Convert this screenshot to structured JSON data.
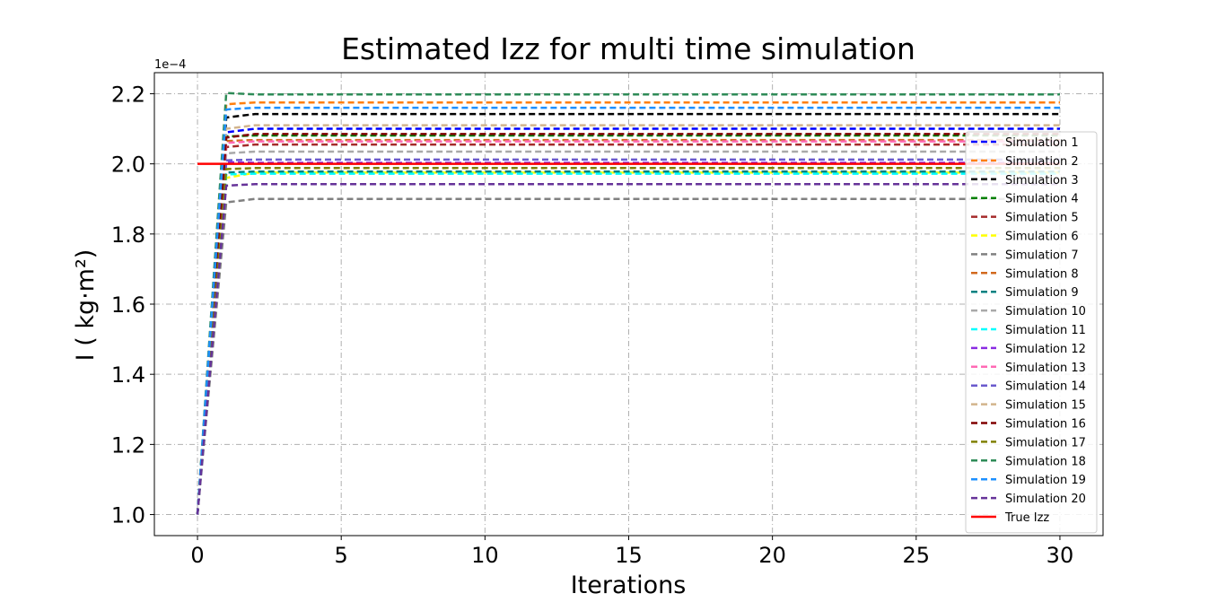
{
  "chart_data": {
    "type": "line",
    "title": "Estimated Izz for multi time simulation",
    "xlabel": "Iterations",
    "ylabel": "I ( kg·m²)",
    "y_offset_label": "1e−4",
    "xlim": [
      -1.5,
      31.5
    ],
    "ylim": [
      0.94,
      2.26
    ],
    "x_ticks": [
      0,
      5,
      10,
      15,
      20,
      25,
      30
    ],
    "x_tick_labels": [
      "0",
      "5",
      "10",
      "15",
      "20",
      "25",
      "30"
    ],
    "y_ticks": [
      1.0,
      1.2,
      1.4,
      1.6,
      1.8,
      2.0,
      2.2
    ],
    "y_tick_labels": [
      "1.0",
      "1.2",
      "1.4",
      "1.6",
      "1.8",
      "2.0",
      "2.2"
    ],
    "grid": true,
    "legend_position": "right",
    "x_range": [
      0,
      30
    ],
    "start_value": 1.0,
    "series": [
      {
        "name": "Simulation 1",
        "color": "#0000ff",
        "style": "dashed",
        "peak": 2.09,
        "final": 2.1
      },
      {
        "name": "Simulation 2",
        "color": "#ff7f0e",
        "style": "dashed",
        "peak": 2.17,
        "final": 2.175
      },
      {
        "name": "Simulation 3",
        "color": "#000000",
        "style": "dashed",
        "peak": 2.132,
        "final": 2.142
      },
      {
        "name": "Simulation 4",
        "color": "#008000",
        "style": "dashed",
        "peak": 2.078,
        "final": 2.081
      },
      {
        "name": "Simulation 5",
        "color": "#a52a2a",
        "style": "dashed",
        "peak": 2.048,
        "final": 2.055
      },
      {
        "name": "Simulation 6",
        "color": "#ffff00",
        "style": "dashed",
        "peak": 1.96,
        "final": 1.975
      },
      {
        "name": "Simulation 7",
        "color": "#808080",
        "style": "dashed",
        "peak": 1.89,
        "final": 1.9
      },
      {
        "name": "Simulation 8",
        "color": "#d2691e",
        "style": "dashed",
        "peak": 2.065,
        "final": 2.068
      },
      {
        "name": "Simulation 9",
        "color": "#008080",
        "style": "dashed",
        "peak": 1.975,
        "final": 1.978
      },
      {
        "name": "Simulation 10",
        "color": "#a9a9a9",
        "style": "dashed",
        "peak": 2.03,
        "final": 2.035
      },
      {
        "name": "Simulation 11",
        "color": "#00ffff",
        "style": "dashed",
        "peak": 1.97,
        "final": 1.972
      },
      {
        "name": "Simulation 12",
        "color": "#8a2be2",
        "style": "dashed",
        "peak": 2.005,
        "final": 2.003
      },
      {
        "name": "Simulation 13",
        "color": "#ff69b4",
        "style": "dashed",
        "peak": 2.06,
        "final": 2.064
      },
      {
        "name": "Simulation 14",
        "color": "#6a5acd",
        "style": "dashed",
        "peak": 2.01,
        "final": 2.012
      },
      {
        "name": "Simulation 15",
        "color": "#d2b48c",
        "style": "dashed",
        "peak": 2.1,
        "final": 2.11
      },
      {
        "name": "Simulation 16",
        "color": "#800000",
        "style": "dashed",
        "peak": 2.075,
        "final": 2.085
      },
      {
        "name": "Simulation 17",
        "color": "#808000",
        "style": "dashed",
        "peak": 1.985,
        "final": 1.988
      },
      {
        "name": "Simulation 18",
        "color": "#2e8b57",
        "style": "dashed",
        "peak": 2.202,
        "final": 2.198
      },
      {
        "name": "Simulation 19",
        "color": "#1e90ff",
        "style": "dashed",
        "peak": 2.155,
        "final": 2.16
      },
      {
        "name": "Simulation 20",
        "color": "#663399",
        "style": "dashed",
        "peak": 1.938,
        "final": 1.942
      },
      {
        "name": "True Izz",
        "color": "#ff0000",
        "style": "solid",
        "x": [
          0,
          30
        ],
        "y": [
          2.0,
          2.0
        ]
      }
    ]
  }
}
